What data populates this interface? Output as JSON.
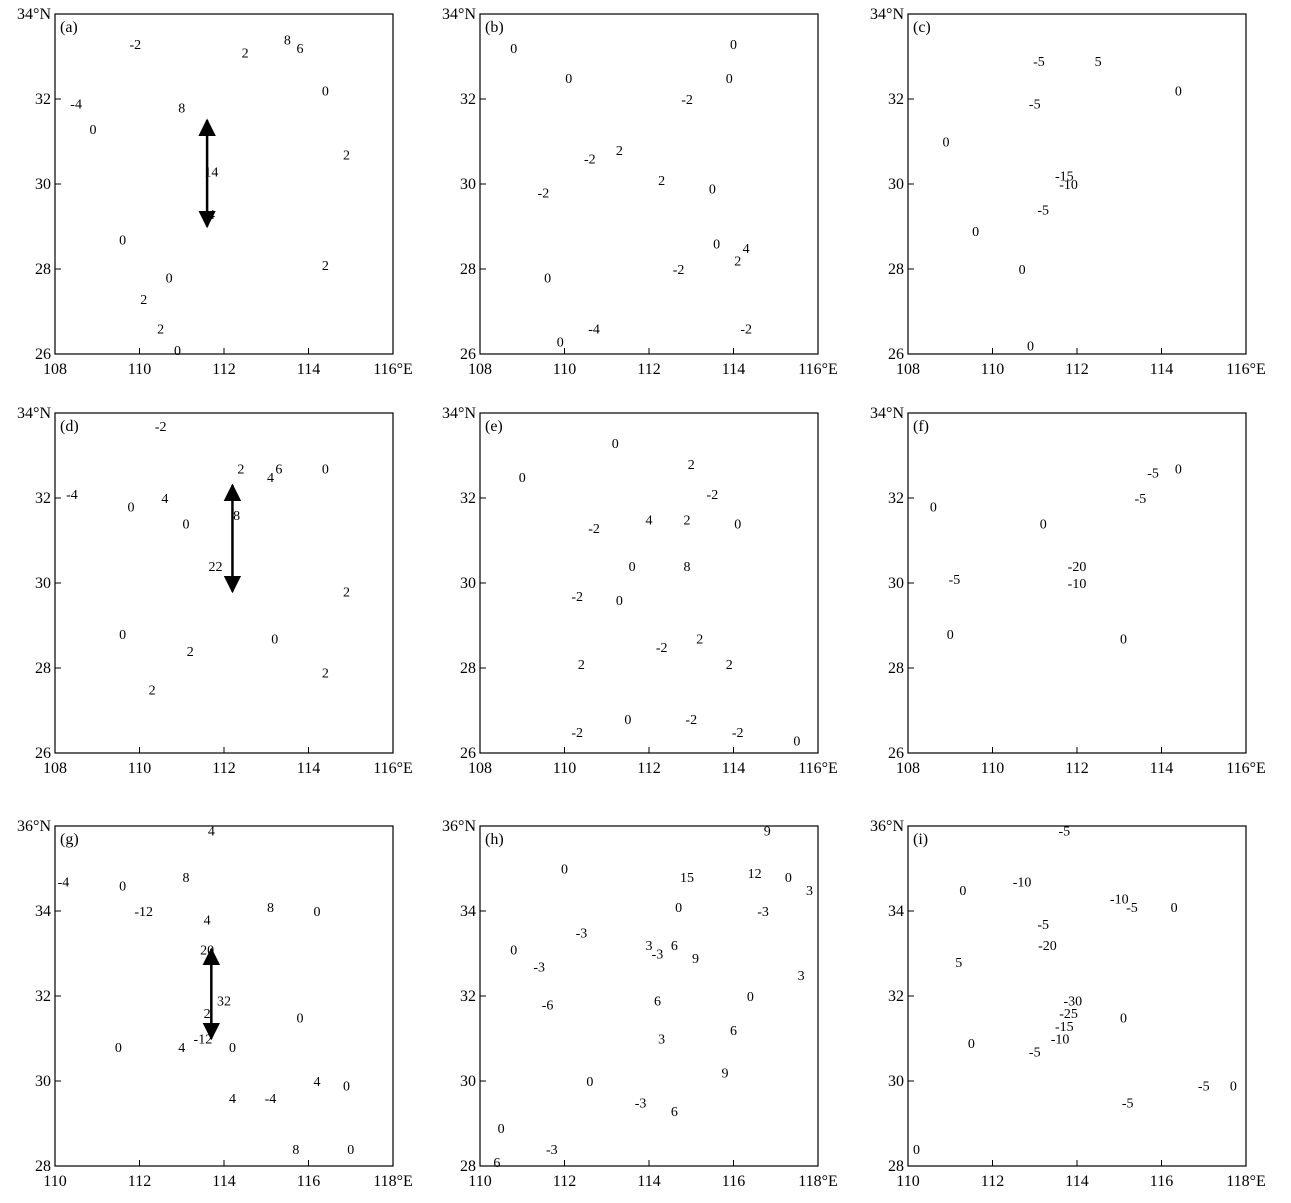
{
  "chart_data": [
    {
      "type": "contour",
      "title": "(a)",
      "xlim": [
        108,
        116
      ],
      "ylim": [
        26,
        34
      ],
      "xticks": [
        108,
        110,
        112,
        114,
        {
          "value": 116,
          "label": "116°E"
        }
      ],
      "yticks": [
        26,
        28,
        30,
        32,
        {
          "value": 34,
          "label": "34°N"
        }
      ],
      "section": {
        "x": [
          111.6,
          111.6
        ],
        "y": [
          31.5,
          29.0
        ]
      },
      "contour_labels": {
        "x": [
          109.9,
          112.5,
          113.5,
          113.8,
          108.5,
          111.0,
          114.4,
          108.9,
          114.9,
          111.7,
          109.6,
          110.7,
          110.1,
          110.5,
          110.9,
          114.4,
          111.7
        ],
        "y": [
          33.3,
          33.1,
          33.4,
          33.2,
          31.9,
          31.8,
          32.2,
          31.3,
          30.7,
          29.3,
          28.7,
          27.8,
          27.3,
          26.6,
          26.1,
          28.1,
          30.3
        ],
        "values": [
          -2,
          2,
          8,
          6,
          -4,
          8,
          0,
          0,
          2,
          4,
          0,
          0,
          2,
          2,
          0,
          2,
          14
        ]
      }
    },
    {
      "type": "contour",
      "title": "(b)",
      "xlim": [
        108,
        116
      ],
      "ylim": [
        26,
        34
      ],
      "xticks": [
        108,
        110,
        112,
        114,
        {
          "value": 116,
          "label": "116°E"
        }
      ],
      "yticks": [
        26,
        28,
        30,
        32,
        {
          "value": 34,
          "label": "34°N"
        }
      ],
      "contour_labels": {
        "x": [
          108.8,
          114.0,
          110.1,
          112.9,
          113.9,
          111.3,
          110.6,
          112.3,
          109.5,
          113.5,
          113.6,
          114.3,
          114.1,
          112.7,
          109.6,
          110.7,
          114.3,
          109.9
        ],
        "y": [
          33.2,
          33.3,
          32.5,
          32.0,
          32.5,
          30.8,
          30.6,
          30.1,
          29.8,
          29.9,
          28.6,
          28.5,
          28.2,
          28.0,
          27.8,
          26.6,
          26.6,
          26.3
        ],
        "values": [
          0,
          0,
          0,
          -2,
          0,
          2,
          -2,
          2,
          -2,
          0,
          0,
          4,
          2,
          -2,
          0,
          -4,
          -2,
          0
        ]
      }
    },
    {
      "type": "contour",
      "title": "(c)",
      "xlim": [
        108,
        116
      ],
      "ylim": [
        26,
        34
      ],
      "xticks": [
        108,
        110,
        112,
        114,
        {
          "value": 116,
          "label": "116°E"
        }
      ],
      "yticks": [
        26,
        28,
        30,
        32,
        {
          "value": 34,
          "label": "34°N"
        }
      ],
      "contour_labels": {
        "x": [
          111.1,
          112.5,
          114.4,
          111.0,
          108.9,
          111.7,
          111.8,
          111.2,
          109.6,
          110.7,
          110.9
        ],
        "y": [
          32.9,
          32.9,
          32.2,
          31.9,
          31.0,
          30.2,
          30.0,
          29.4,
          28.9,
          28.0,
          26.2
        ],
        "values": [
          -5,
          5,
          0,
          -5,
          0,
          -15,
          -10,
          -5,
          0,
          0,
          0
        ]
      }
    },
    {
      "type": "contour",
      "title": "(d)",
      "xlim": [
        108,
        116
      ],
      "ylim": [
        26,
        34
      ],
      "xticks": [
        108,
        110,
        112,
        114,
        {
          "value": 116,
          "label": "116°E"
        }
      ],
      "yticks": [
        26,
        28,
        30,
        32,
        {
          "value": 34,
          "label": "34°N"
        }
      ],
      "section": {
        "x": [
          112.2,
          112.2
        ],
        "y": [
          32.3,
          29.8
        ]
      },
      "contour_labels": {
        "x": [
          110.5,
          108.4,
          110.6,
          109.8,
          111.1,
          112.4,
          113.3,
          113.1,
          114.4,
          112.3,
          111.8,
          114.9,
          109.6,
          111.2,
          113.2,
          114.4,
          110.3
        ],
        "y": [
          33.7,
          32.1,
          32.0,
          31.8,
          31.4,
          32.7,
          32.7,
          32.5,
          32.7,
          31.6,
          30.4,
          29.8,
          28.8,
          28.4,
          28.7,
          27.9,
          27.5
        ],
        "values": [
          -2,
          -4,
          4,
          0,
          0,
          2,
          6,
          4,
          0,
          8,
          22,
          2,
          0,
          2,
          0,
          2,
          2
        ]
      }
    },
    {
      "type": "contour",
      "title": "(e)",
      "xlim": [
        108,
        116
      ],
      "ylim": [
        26,
        34
      ],
      "xticks": [
        108,
        110,
        112,
        114,
        {
          "value": 116,
          "label": "116°E"
        }
      ],
      "yticks": [
        26,
        28,
        30,
        32,
        {
          "value": 34,
          "label": "34°N"
        }
      ],
      "contour_labels": {
        "x": [
          111.2,
          109.0,
          113.0,
          113.5,
          110.7,
          112.0,
          112.9,
          114.1,
          112.9,
          111.6,
          110.3,
          111.3,
          113.2,
          112.3,
          110.4,
          113.9,
          111.5,
          113.0,
          110.3,
          114.1,
          115.5
        ],
        "y": [
          33.3,
          32.5,
          32.8,
          32.1,
          31.3,
          31.5,
          31.5,
          31.4,
          30.4,
          30.4,
          29.7,
          29.6,
          28.7,
          28.5,
          28.1,
          28.1,
          26.8,
          26.8,
          26.5,
          26.5,
          26.3
        ],
        "values": [
          0,
          0,
          2,
          -2,
          -2,
          4,
          2,
          0,
          8,
          0,
          -2,
          0,
          2,
          -2,
          2,
          2,
          0,
          -2,
          -2,
          -2,
          0
        ]
      }
    },
    {
      "type": "contour",
      "title": "(f)",
      "xlim": [
        108,
        116
      ],
      "ylim": [
        26,
        34
      ],
      "xticks": [
        108,
        110,
        112,
        114,
        {
          "value": 116,
          "label": "116°E"
        }
      ],
      "yticks": [
        26,
        28,
        30,
        32,
        {
          "value": 34,
          "label": "34°N"
        }
      ],
      "contour_labels": {
        "x": [
          114.4,
          113.8,
          113.5,
          108.6,
          111.2,
          112.0,
          112.0,
          109.1,
          109.0,
          113.1
        ],
        "y": [
          32.7,
          32.6,
          32.0,
          31.8,
          31.4,
          30.4,
          30.0,
          30.1,
          28.8,
          28.7
        ],
        "values": [
          0,
          -5,
          -5,
          0,
          0,
          -20,
          -10,
          -5,
          0,
          0
        ]
      }
    },
    {
      "type": "contour",
      "title": "(g)",
      "xlim": [
        110,
        118
      ],
      "ylim": [
        28,
        36
      ],
      "xticks": [
        110,
        112,
        114,
        116,
        {
          "value": 118,
          "label": "118°E"
        }
      ],
      "yticks": [
        28,
        30,
        32,
        34,
        {
          "value": 36,
          "label": "36°N"
        }
      ],
      "section": {
        "x": [
          113.7,
          113.7
        ],
        "y": [
          33.1,
          31.0
        ]
      },
      "contour_labels": {
        "x": [
          113.7,
          110.2,
          111.6,
          113.1,
          112.1,
          113.6,
          115.1,
          116.2,
          113.6,
          113.6,
          114.0,
          115.8,
          113.5,
          113.0,
          114.2,
          111.5,
          116.2,
          115.1,
          116.9,
          115.7,
          117.0,
          114.2
        ],
        "y": [
          35.9,
          34.7,
          34.6,
          34.8,
          34.0,
          33.8,
          34.1,
          34.0,
          33.1,
          31.6,
          31.9,
          31.5,
          31.0,
          30.8,
          30.8,
          30.8,
          30.0,
          29.6,
          29.9,
          28.4,
          28.4,
          29.6
        ],
        "values": [
          4,
          -4,
          0,
          8,
          -12,
          4,
          8,
          0,
          20,
          2,
          32,
          0,
          -12,
          4,
          0,
          0,
          4,
          -4,
          0,
          8,
          0,
          4
        ]
      }
    },
    {
      "type": "contour",
      "title": "(h)",
      "xlim": [
        110,
        118
      ],
      "ylim": [
        28,
        36
      ],
      "xticks": [
        110,
        112,
        114,
        116,
        {
          "value": 118,
          "label": "118°E"
        }
      ],
      "yticks": [
        28,
        30,
        32,
        34,
        {
          "value": 36,
          "label": "36°N"
        }
      ],
      "contour_labels": {
        "x": [
          116.8,
          114.9,
          116.5,
          117.3,
          112.0,
          117.8,
          112.4,
          114.7,
          116.7,
          114.0,
          114.6,
          114.2,
          115.1,
          110.8,
          111.4,
          117.6,
          111.6,
          114.2,
          116.4,
          114.3,
          116.0,
          115.8,
          112.6,
          113.8,
          114.6,
          111.7,
          110.4,
          110.5
        ],
        "y": [
          35.9,
          34.8,
          34.9,
          34.8,
          35.0,
          34.5,
          33.5,
          34.1,
          34.0,
          33.2,
          33.2,
          33.0,
          32.9,
          33.1,
          32.7,
          32.5,
          31.8,
          31.9,
          32.0,
          31.0,
          31.2,
          30.2,
          30.0,
          29.5,
          29.3,
          28.4,
          28.1,
          28.9
        ],
        "values": [
          9,
          15,
          12,
          0,
          0,
          3,
          -3,
          0,
          -3,
          3,
          6,
          -3,
          9,
          0,
          -3,
          3,
          -6,
          6,
          0,
          3,
          6,
          9,
          0,
          -3,
          6,
          -3,
          6,
          0
        ]
      }
    },
    {
      "type": "contour",
      "title": "(i)",
      "xlim": [
        110,
        118
      ],
      "ylim": [
        28,
        36
      ],
      "xticks": [
        110,
        112,
        114,
        116,
        {
          "value": 118,
          "label": "118°E"
        }
      ],
      "yticks": [
        28,
        30,
        32,
        34,
        {
          "value": 36,
          "label": "36°N"
        }
      ],
      "contour_labels": {
        "x": [
          113.7,
          112.7,
          115.0,
          115.3,
          116.3,
          111.3,
          113.2,
          113.3,
          111.2,
          113.9,
          113.8,
          113.7,
          113.6,
          113.0,
          111.5,
          115.1,
          117.0,
          115.2,
          117.7,
          110.2
        ],
        "y": [
          35.9,
          34.7,
          34.3,
          34.1,
          34.1,
          34.5,
          33.7,
          33.2,
          32.8,
          31.9,
          31.6,
          31.3,
          31.0,
          30.7,
          30.9,
          31.5,
          29.9,
          29.5,
          29.9,
          28.4
        ],
        "values": [
          -5,
          -10,
          -10,
          -5,
          0,
          0,
          -5,
          -20,
          5,
          -30,
          -25,
          -15,
          -10,
          -5,
          0,
          0,
          -5,
          -5,
          0,
          0
        ]
      }
    }
  ]
}
